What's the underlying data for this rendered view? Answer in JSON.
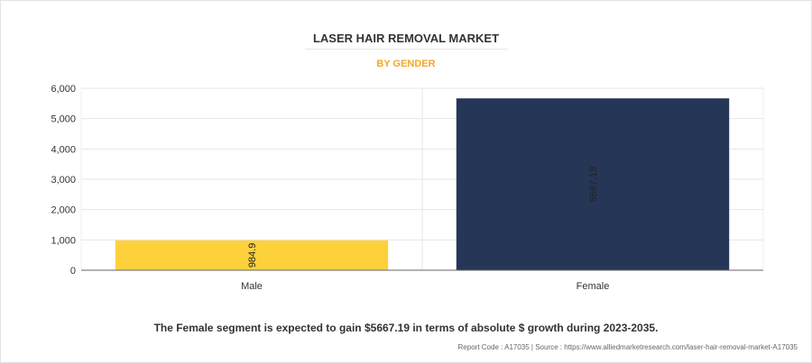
{
  "title": "LASER HAIR REMOVAL MARKET",
  "subtitle": "BY GENDER",
  "footnote": "The Female segment is expected to gain $5667.19 in terms of absolute $ growth during 2023-2035.",
  "source": "Report Code : A17035  |  Source : https://www.alliedmarketresearch.com/laser-hair-removal-market-A17035",
  "chart_data": {
    "type": "bar",
    "categories": [
      "Male",
      "Female"
    ],
    "values": [
      984.9,
      5667.19
    ],
    "data_labels": [
      "984.9",
      "5667.19"
    ],
    "colors": [
      "#fdd13b",
      "#263657"
    ],
    "ylim": [
      0,
      6000
    ],
    "yticks": [
      0,
      1000,
      2000,
      3000,
      4000,
      5000,
      6000
    ],
    "ytick_labels": [
      "0",
      "1,000",
      "2,000",
      "3,000",
      "4,000",
      "5,000",
      "6,000"
    ],
    "grid": true,
    "legend": "none",
    "xlabel": "",
    "ylabel": ""
  }
}
